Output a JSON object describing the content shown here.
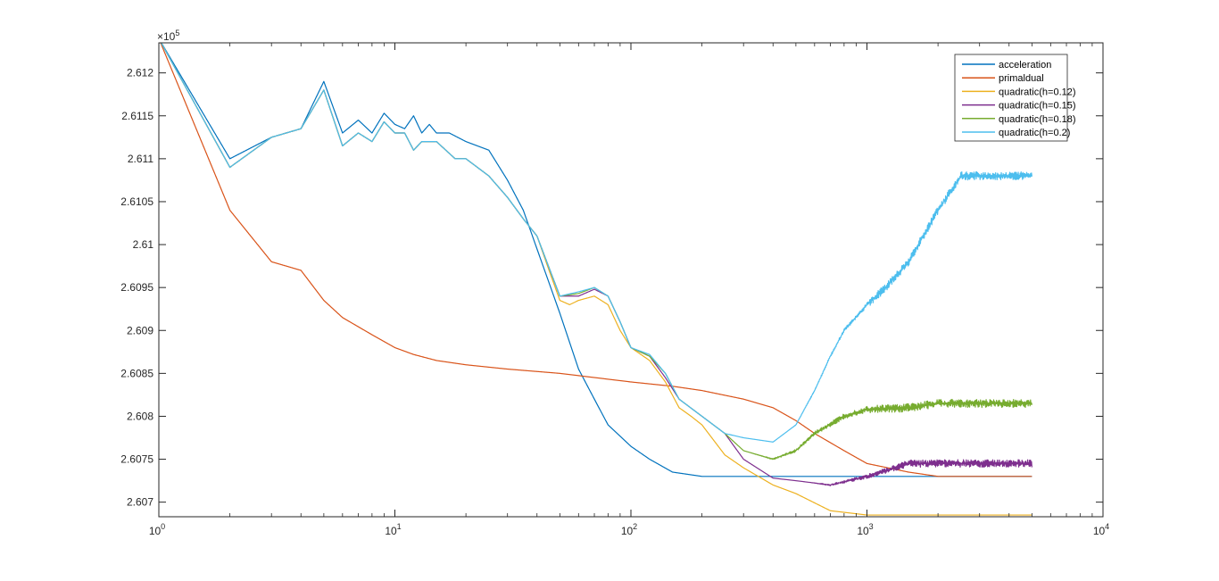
{
  "chart_data": {
    "type": "line",
    "title": "",
    "xlabel": "",
    "ylabel": "",
    "x_scale": "log",
    "xlim": [
      1,
      10000
    ],
    "ylim": [
      2.60683,
      2.61235
    ],
    "y_exponent_label": "×10",
    "y_exponent_power": "5",
    "grid": false,
    "legend_position": "top-right",
    "x_ticks": [
      {
        "value": 1,
        "base": "10",
        "power": "0"
      },
      {
        "value": 10,
        "base": "10",
        "power": "1"
      },
      {
        "value": 100,
        "base": "10",
        "power": "2"
      },
      {
        "value": 1000,
        "base": "10",
        "power": "3"
      },
      {
        "value": 10000,
        "base": "10",
        "power": "4"
      }
    ],
    "y_ticks": [
      {
        "value": 2.607,
        "label": "2.607"
      },
      {
        "value": 2.6075,
        "label": "2.6075"
      },
      {
        "value": 2.608,
        "label": "2.608"
      },
      {
        "value": 2.6085,
        "label": "2.6085"
      },
      {
        "value": 2.609,
        "label": "2.609"
      },
      {
        "value": 2.6095,
        "label": "2.6095"
      },
      {
        "value": 2.61,
        "label": "2.61"
      },
      {
        "value": 2.6105,
        "label": "2.6105"
      },
      {
        "value": 2.611,
        "label": "2.611"
      },
      {
        "value": 2.6115,
        "label": "2.6115"
      },
      {
        "value": 2.612,
        "label": "2.612"
      }
    ],
    "series": [
      {
        "name": "acceleration",
        "color": "#0072BD",
        "noise_amp": 0,
        "points": [
          [
            1,
            2.6124
          ],
          [
            2,
            2.611
          ],
          [
            3,
            2.61125
          ],
          [
            4,
            2.61135
          ],
          [
            5,
            2.6119
          ],
          [
            6,
            2.6113
          ],
          [
            7,
            2.61145
          ],
          [
            8,
            2.6113
          ],
          [
            9,
            2.61153
          ],
          [
            10,
            2.6114
          ],
          [
            11,
            2.61135
          ],
          [
            12,
            2.6115
          ],
          [
            13,
            2.6113
          ],
          [
            14,
            2.6114
          ],
          [
            15,
            2.6113
          ],
          [
            17,
            2.6113
          ],
          [
            20,
            2.6112
          ],
          [
            25,
            2.6111
          ],
          [
            30,
            2.61075
          ],
          [
            35,
            2.6104
          ],
          [
            40,
            2.60995
          ],
          [
            50,
            2.6092
          ],
          [
            60,
            2.60855
          ],
          [
            70,
            2.6082
          ],
          [
            80,
            2.6079
          ],
          [
            100,
            2.60765
          ],
          [
            120,
            2.6075
          ],
          [
            150,
            2.60735
          ],
          [
            200,
            2.6073
          ],
          [
            300,
            2.6073
          ],
          [
            500,
            2.6073
          ],
          [
            1000,
            2.6073
          ],
          [
            5000,
            2.6073
          ]
        ]
      },
      {
        "name": "primaldual",
        "color": "#D95319",
        "noise_amp": 0,
        "points": [
          [
            1,
            2.6124
          ],
          [
            2,
            2.6104
          ],
          [
            3,
            2.6098
          ],
          [
            4,
            2.6097
          ],
          [
            5,
            2.60935
          ],
          [
            6,
            2.60915
          ],
          [
            8,
            2.60895
          ],
          [
            10,
            2.6088
          ],
          [
            12,
            2.60872
          ],
          [
            15,
            2.60865
          ],
          [
            20,
            2.6086
          ],
          [
            30,
            2.60855
          ],
          [
            50,
            2.6085
          ],
          [
            100,
            2.6084
          ],
          [
            150,
            2.60835
          ],
          [
            200,
            2.6083
          ],
          [
            300,
            2.6082
          ],
          [
            400,
            2.6081
          ],
          [
            500,
            2.60795
          ],
          [
            600,
            2.6078
          ],
          [
            800,
            2.6076
          ],
          [
            1000,
            2.60745
          ],
          [
            1500,
            2.60735
          ],
          [
            2000,
            2.6073
          ],
          [
            5000,
            2.6073
          ]
        ]
      },
      {
        "name": "quadratic(h=0.12)",
        "color": "#EDB120",
        "noise_amp": 0,
        "points": [
          [
            1,
            2.6124
          ],
          [
            2,
            2.6109
          ],
          [
            3,
            2.61125
          ],
          [
            4,
            2.61135
          ],
          [
            5,
            2.6118
          ],
          [
            6,
            2.61115
          ],
          [
            7,
            2.6113
          ],
          [
            8,
            2.6112
          ],
          [
            9,
            2.61143
          ],
          [
            10,
            2.6113
          ],
          [
            11,
            2.6113
          ],
          [
            12,
            2.6111
          ],
          [
            13,
            2.6112
          ],
          [
            15,
            2.6112
          ],
          [
            18,
            2.611
          ],
          [
            20,
            2.611
          ],
          [
            25,
            2.6108
          ],
          [
            30,
            2.61055
          ],
          [
            35,
            2.6103
          ],
          [
            40,
            2.6101
          ],
          [
            45,
            2.6097
          ],
          [
            50,
            2.60935
          ],
          [
            55,
            2.6093
          ],
          [
            60,
            2.60935
          ],
          [
            70,
            2.6094
          ],
          [
            80,
            2.6093
          ],
          [
            90,
            2.609
          ],
          [
            100,
            2.6088
          ],
          [
            120,
            2.60865
          ],
          [
            140,
            2.6084
          ],
          [
            160,
            2.6081
          ],
          [
            180,
            2.608
          ],
          [
            200,
            2.6079
          ],
          [
            250,
            2.60755
          ],
          [
            300,
            2.6074
          ],
          [
            400,
            2.6072
          ],
          [
            500,
            2.6071
          ],
          [
            700,
            2.6069
          ],
          [
            1000,
            2.60685
          ],
          [
            5000,
            2.60685
          ]
        ]
      },
      {
        "name": "quadratic(h=0.15)",
        "color": "#7E2F8E",
        "noise_amp": 0,
        "points": [
          [
            1,
            2.6124
          ],
          [
            2,
            2.6109
          ],
          [
            3,
            2.61125
          ],
          [
            4,
            2.61135
          ],
          [
            5,
            2.6118
          ],
          [
            6,
            2.61115
          ],
          [
            7,
            2.6113
          ],
          [
            8,
            2.6112
          ],
          [
            9,
            2.61143
          ],
          [
            10,
            2.6113
          ],
          [
            11,
            2.6113
          ],
          [
            12,
            2.6111
          ],
          [
            13,
            2.6112
          ],
          [
            15,
            2.6112
          ],
          [
            18,
            2.611
          ],
          [
            20,
            2.611
          ],
          [
            25,
            2.6108
          ],
          [
            30,
            2.61055
          ],
          [
            35,
            2.6103
          ],
          [
            40,
            2.6101
          ],
          [
            50,
            2.6094
          ],
          [
            60,
            2.6094
          ],
          [
            70,
            2.60948
          ],
          [
            80,
            2.6094
          ],
          [
            90,
            2.6091
          ],
          [
            100,
            2.6088
          ],
          [
            120,
            2.6087
          ],
          [
            140,
            2.60845
          ],
          [
            160,
            2.6082
          ],
          [
            200,
            2.608
          ],
          [
            250,
            2.6078
          ],
          [
            300,
            2.6075
          ],
          [
            400,
            2.60728
          ],
          [
            500,
            2.60725
          ],
          [
            700,
            2.6072
          ],
          [
            1000,
            2.6073
          ],
          [
            1500,
            2.60745
          ],
          [
            2000,
            2.60745
          ],
          [
            5000,
            2.60745
          ]
        ]
      },
      {
        "name": "quadratic(h=0.18)",
        "color": "#77AC30",
        "noise_amp": 0,
        "points": [
          [
            1,
            2.6124
          ],
          [
            2,
            2.6109
          ],
          [
            3,
            2.61125
          ],
          [
            4,
            2.61135
          ],
          [
            5,
            2.6118
          ],
          [
            6,
            2.61115
          ],
          [
            7,
            2.6113
          ],
          [
            8,
            2.6112
          ],
          [
            9,
            2.61143
          ],
          [
            10,
            2.6113
          ],
          [
            11,
            2.6113
          ],
          [
            12,
            2.6111
          ],
          [
            13,
            2.6112
          ],
          [
            15,
            2.6112
          ],
          [
            18,
            2.611
          ],
          [
            20,
            2.611
          ],
          [
            25,
            2.6108
          ],
          [
            30,
            2.61055
          ],
          [
            35,
            2.6103
          ],
          [
            40,
            2.6101
          ],
          [
            50,
            2.6094
          ],
          [
            60,
            2.60943
          ],
          [
            70,
            2.6095
          ],
          [
            80,
            2.6094
          ],
          [
            90,
            2.6091
          ],
          [
            100,
            2.6088
          ],
          [
            120,
            2.6087
          ],
          [
            140,
            2.6085
          ],
          [
            160,
            2.6082
          ],
          [
            200,
            2.608
          ],
          [
            250,
            2.6078
          ],
          [
            300,
            2.6076
          ],
          [
            400,
            2.6075
          ],
          [
            500,
            2.6076
          ],
          [
            600,
            2.6078
          ],
          [
            800,
            2.608
          ],
          [
            1000,
            2.60808
          ],
          [
            1500,
            2.6081
          ],
          [
            2000,
            2.60815
          ],
          [
            5000,
            2.60815
          ]
        ]
      },
      {
        "name": "quadratic(h=0.2)",
        "color": "#4DBEEE",
        "noise_amp": 7e-05,
        "points": [
          [
            1,
            2.6124
          ],
          [
            2,
            2.6109
          ],
          [
            3,
            2.61125
          ],
          [
            4,
            2.61135
          ],
          [
            5,
            2.6118
          ],
          [
            6,
            2.61115
          ],
          [
            7,
            2.6113
          ],
          [
            8,
            2.6112
          ],
          [
            9,
            2.61143
          ],
          [
            10,
            2.6113
          ],
          [
            11,
            2.6113
          ],
          [
            12,
            2.6111
          ],
          [
            13,
            2.6112
          ],
          [
            15,
            2.6112
          ],
          [
            18,
            2.611
          ],
          [
            20,
            2.611
          ],
          [
            25,
            2.6108
          ],
          [
            30,
            2.61055
          ],
          [
            35,
            2.6103
          ],
          [
            40,
            2.6101
          ],
          [
            50,
            2.6094
          ],
          [
            60,
            2.60945
          ],
          [
            70,
            2.6095
          ],
          [
            80,
            2.6094
          ],
          [
            90,
            2.6091
          ],
          [
            100,
            2.6088
          ],
          [
            120,
            2.60872
          ],
          [
            140,
            2.6085
          ],
          [
            160,
            2.6082
          ],
          [
            200,
            2.608
          ],
          [
            250,
            2.6078
          ],
          [
            300,
            2.60775
          ],
          [
            400,
            2.6077
          ],
          [
            500,
            2.6079
          ],
          [
            600,
            2.6083
          ],
          [
            700,
            2.6087
          ],
          [
            800,
            2.609
          ],
          [
            1000,
            2.6093
          ],
          [
            1200,
            2.6095
          ],
          [
            1500,
            2.6098
          ],
          [
            2000,
            2.6104
          ],
          [
            2500,
            2.6108
          ],
          [
            3000,
            2.6108
          ],
          [
            5000,
            2.6108
          ]
        ]
      }
    ]
  }
}
